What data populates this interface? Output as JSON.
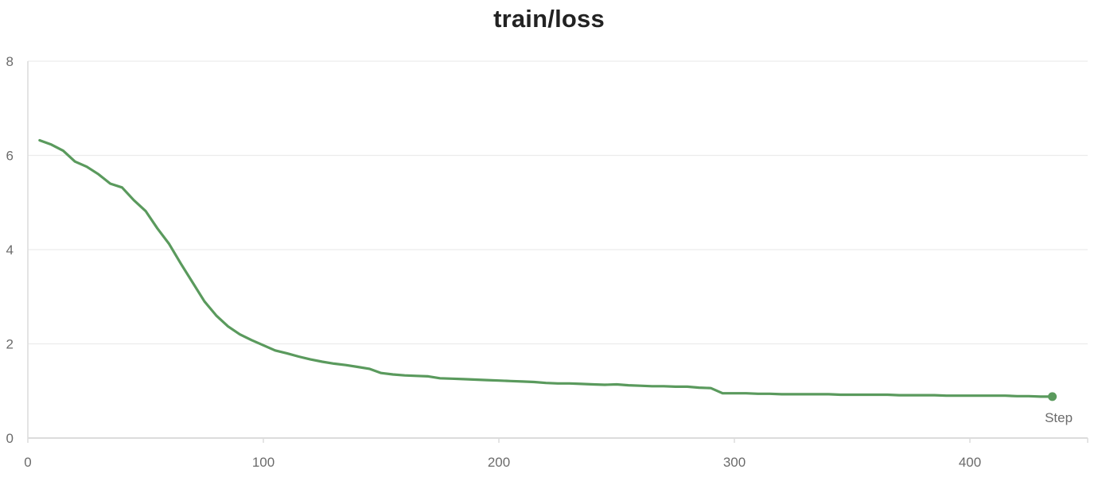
{
  "chart_data": {
    "type": "line",
    "title": "train/loss",
    "xlabel": "Step",
    "ylabel": "",
    "xlim": [
      0,
      450
    ],
    "ylim": [
      0,
      8
    ],
    "x_ticks": [
      0,
      100,
      200,
      300,
      400
    ],
    "y_ticks": [
      0,
      2,
      4,
      6,
      8
    ],
    "grid": true,
    "legend": "none",
    "series": [
      {
        "color": "#5a9a5d",
        "x": [
          5,
          10,
          15,
          20,
          25,
          30,
          35,
          40,
          45,
          50,
          55,
          60,
          65,
          70,
          75,
          80,
          85,
          90,
          95,
          100,
          105,
          110,
          115,
          120,
          125,
          130,
          135,
          140,
          145,
          150,
          155,
          160,
          165,
          170,
          175,
          180,
          185,
          190,
          195,
          200,
          205,
          210,
          215,
          220,
          225,
          230,
          235,
          240,
          245,
          250,
          255,
          260,
          265,
          270,
          275,
          280,
          285,
          290,
          295,
          300,
          305,
          310,
          315,
          320,
          325,
          330,
          335,
          340,
          345,
          350,
          355,
          360,
          365,
          370,
          375,
          380,
          385,
          390,
          395,
          400,
          405,
          410,
          415,
          420,
          425,
          430,
          435
        ],
        "y": [
          6.32,
          6.23,
          6.1,
          5.87,
          5.76,
          5.6,
          5.4,
          5.32,
          5.05,
          4.82,
          4.45,
          4.12,
          3.7,
          3.3,
          2.9,
          2.6,
          2.37,
          2.2,
          2.08,
          1.97,
          1.86,
          1.8,
          1.73,
          1.67,
          1.62,
          1.58,
          1.55,
          1.51,
          1.47,
          1.38,
          1.35,
          1.33,
          1.32,
          1.31,
          1.27,
          1.26,
          1.25,
          1.24,
          1.23,
          1.22,
          1.21,
          1.2,
          1.19,
          1.17,
          1.16,
          1.16,
          1.15,
          1.14,
          1.13,
          1.14,
          1.12,
          1.11,
          1.1,
          1.1,
          1.09,
          1.09,
          1.07,
          1.06,
          0.95,
          0.95,
          0.95,
          0.94,
          0.94,
          0.93,
          0.93,
          0.93,
          0.93,
          0.93,
          0.92,
          0.92,
          0.92,
          0.92,
          0.92,
          0.91,
          0.91,
          0.91,
          0.91,
          0.9,
          0.9,
          0.9,
          0.9,
          0.9,
          0.9,
          0.89,
          0.89,
          0.88,
          0.88
        ]
      }
    ]
  }
}
